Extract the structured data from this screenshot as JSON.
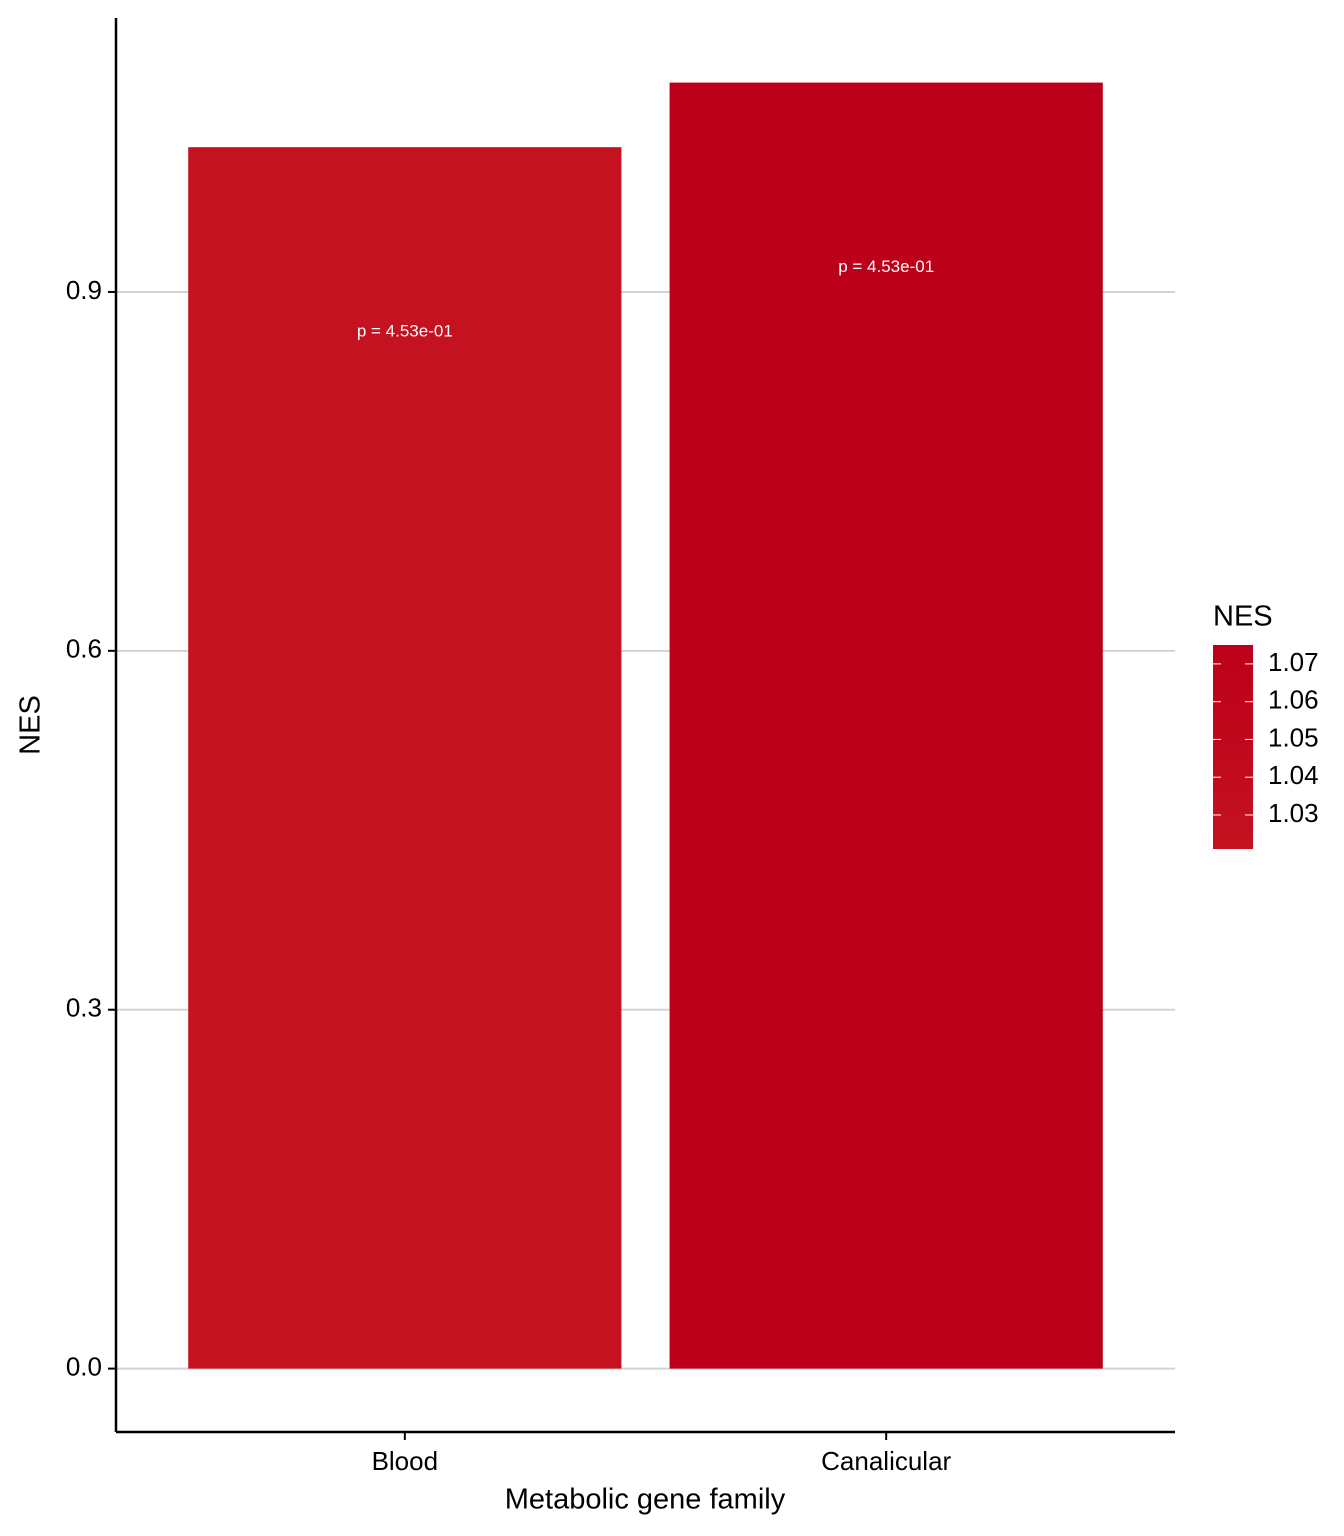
{
  "chart_data": {
    "type": "bar",
    "x_label": "Metabolic gene family",
    "y_label": "NES",
    "categories": [
      "Blood",
      "Canalicular"
    ],
    "values": [
      1.021,
      1.075
    ],
    "colors": [
      "#c41220",
      "#bd001a"
    ],
    "annotations": [
      "p =  4.53e-01",
      "p =  4.53e-01"
    ],
    "ylim": [
      -0.053,
      1.129
    ],
    "yticks": [
      {
        "value": 0,
        "label": "0.0"
      },
      0.3,
      0.6,
      0.9
    ],
    "grid": true,
    "legend": {
      "title": "NES",
      "position": "right",
      "lim": [
        1.021,
        1.075
      ],
      "ticks": [
        1.03,
        1.04,
        1.05,
        1.06,
        1.07
      ],
      "colors": [
        "#c41220",
        "#bd001a"
      ]
    }
  }
}
